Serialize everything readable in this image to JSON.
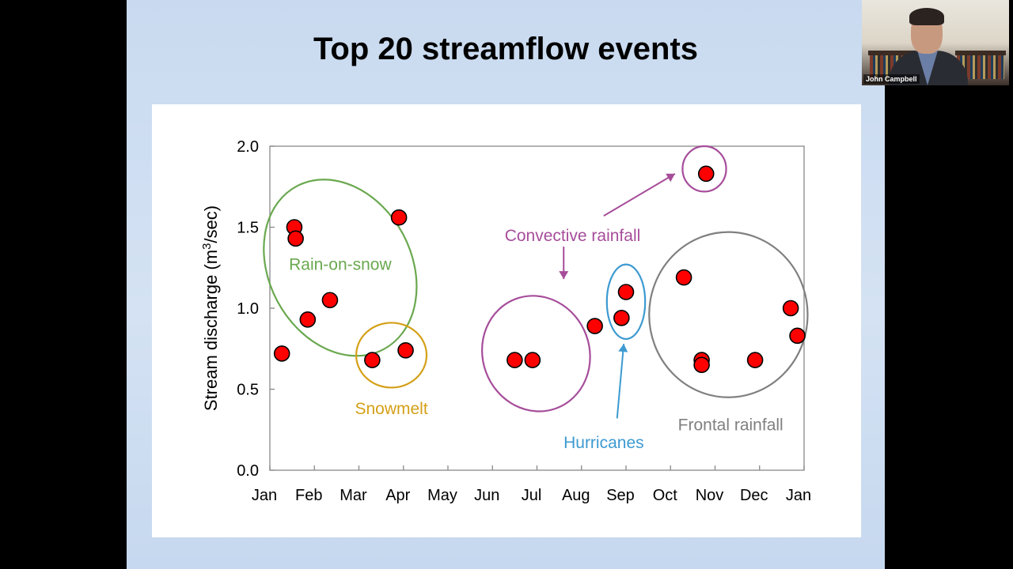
{
  "slide": {
    "title": "Top 20 streamflow events"
  },
  "video": {
    "participant_name": "John Campbell"
  },
  "chart_data": {
    "type": "scatter",
    "title": "",
    "xlabel": "",
    "ylabel": "Stream discharge (m³/sec)",
    "ylabel_parts": {
      "main": "Stream discharge (m",
      "sup": "3",
      "end": "/sec)"
    },
    "x_ticks": [
      "Jan",
      "Feb",
      "Mar",
      "Apr",
      "May",
      "Jun",
      "Jul",
      "Aug",
      "Sep",
      "Oct",
      "Nov",
      "Dec",
      "Jan"
    ],
    "x_unit": "month (0 = Jan 1, 12 = next Jan 1)",
    "xlim": [
      0,
      12
    ],
    "y_ticks": [
      "0.0",
      "0.5",
      "1.0",
      "1.5",
      "2.0"
    ],
    "ylim": [
      0,
      2.0
    ],
    "grid": false,
    "marker_color": "#ff0000",
    "points": [
      {
        "x": 0.27,
        "y": 0.72,
        "group": "Rain-on-snow"
      },
      {
        "x": 0.55,
        "y": 1.5,
        "group": "Rain-on-snow"
      },
      {
        "x": 0.58,
        "y": 1.43,
        "group": "Rain-on-snow"
      },
      {
        "x": 0.85,
        "y": 0.93,
        "group": "Rain-on-snow"
      },
      {
        "x": 1.35,
        "y": 1.05,
        "group": "Rain-on-snow"
      },
      {
        "x": 2.9,
        "y": 1.56,
        "group": "Rain-on-snow"
      },
      {
        "x": 2.3,
        "y": 0.68,
        "group": "Snowmelt"
      },
      {
        "x": 3.05,
        "y": 0.74,
        "group": "Snowmelt"
      },
      {
        "x": 5.5,
        "y": 0.68,
        "group": "Convective rainfall"
      },
      {
        "x": 5.9,
        "y": 0.68,
        "group": "Convective rainfall"
      },
      {
        "x": 7.3,
        "y": 0.89,
        "group": "Convective rainfall"
      },
      {
        "x": 9.8,
        "y": 1.83,
        "group": "Convective rainfall"
      },
      {
        "x": 8.0,
        "y": 1.1,
        "group": "Hurricanes"
      },
      {
        "x": 7.9,
        "y": 0.94,
        "group": "Hurricanes"
      },
      {
        "x": 9.3,
        "y": 1.19,
        "group": "Frontal rainfall"
      },
      {
        "x": 9.7,
        "y": 0.68,
        "group": "Frontal rainfall"
      },
      {
        "x": 9.7,
        "y": 0.65,
        "group": "Frontal rainfall"
      },
      {
        "x": 10.9,
        "y": 0.68,
        "group": "Frontal rainfall"
      },
      {
        "x": 11.7,
        "y": 1.0,
        "group": "Frontal rainfall"
      },
      {
        "x": 11.85,
        "y": 0.83,
        "group": "Frontal rainfall"
      }
    ],
    "annotations": [
      {
        "text": "Rain-on-snow",
        "color": "#6aa84f"
      },
      {
        "text": "Snowmelt",
        "color": "#d4a017"
      },
      {
        "text": "Convective rainfall",
        "color": "#a64d9a"
      },
      {
        "text": "Hurricanes",
        "color": "#3d9ad1"
      },
      {
        "text": "Frontal rainfall",
        "color": "#808080"
      }
    ]
  }
}
